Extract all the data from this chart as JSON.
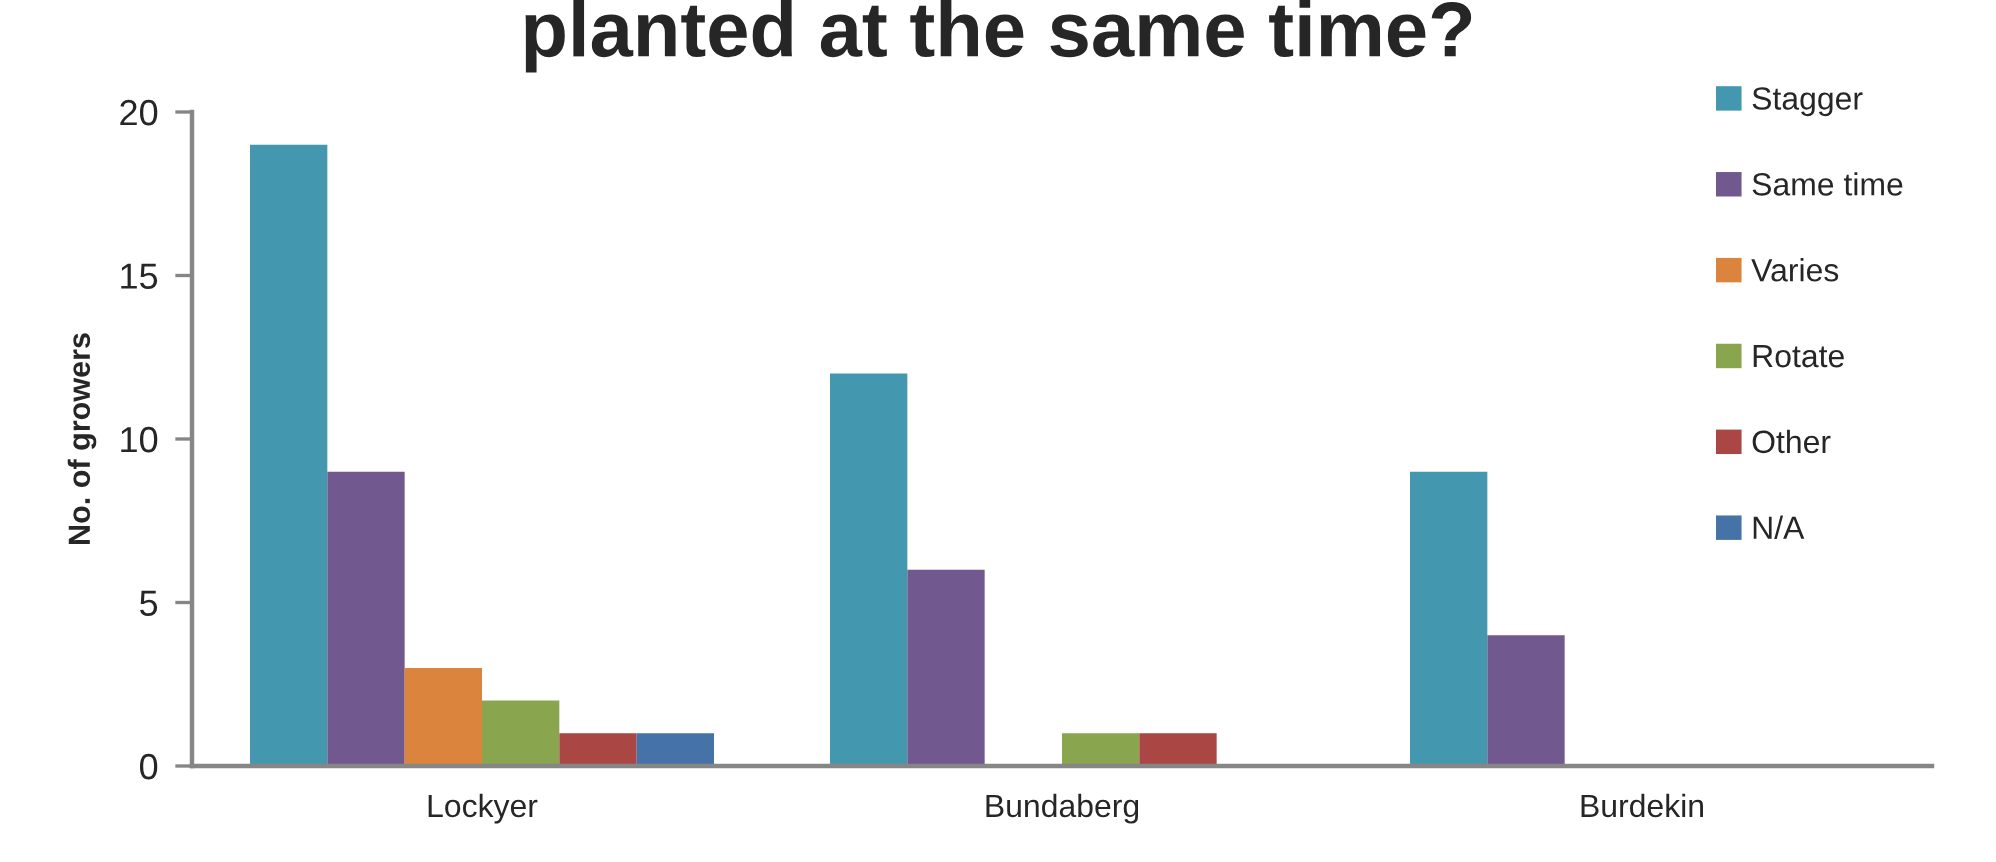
{
  "chart_data": {
    "type": "bar",
    "title": "planted at the same time?",
    "ylabel": "No. of growers",
    "categories": [
      "Lockyer",
      "Bundaberg",
      "Burdekin"
    ],
    "series": [
      {
        "name": "Stagger",
        "color": "#4398af",
        "values": [
          19,
          12,
          9
        ]
      },
      {
        "name": "Same time",
        "color": "#71588f",
        "values": [
          9,
          6,
          4
        ]
      },
      {
        "name": "Varies",
        "color": "#db843d",
        "values": [
          3,
          null,
          null
        ]
      },
      {
        "name": "Rotate",
        "color": "#89a54e",
        "values": [
          2,
          1,
          null
        ]
      },
      {
        "name": "Other",
        "color": "#aa4643",
        "values": [
          1,
          1,
          null
        ]
      },
      {
        "name": "N/A",
        "color": "#4572a7",
        "values": [
          1,
          null,
          null
        ]
      }
    ],
    "ylim": [
      0,
      20
    ],
    "yticks": [
      0,
      5,
      10,
      15,
      20
    ],
    "grid": false,
    "legend": "right"
  }
}
